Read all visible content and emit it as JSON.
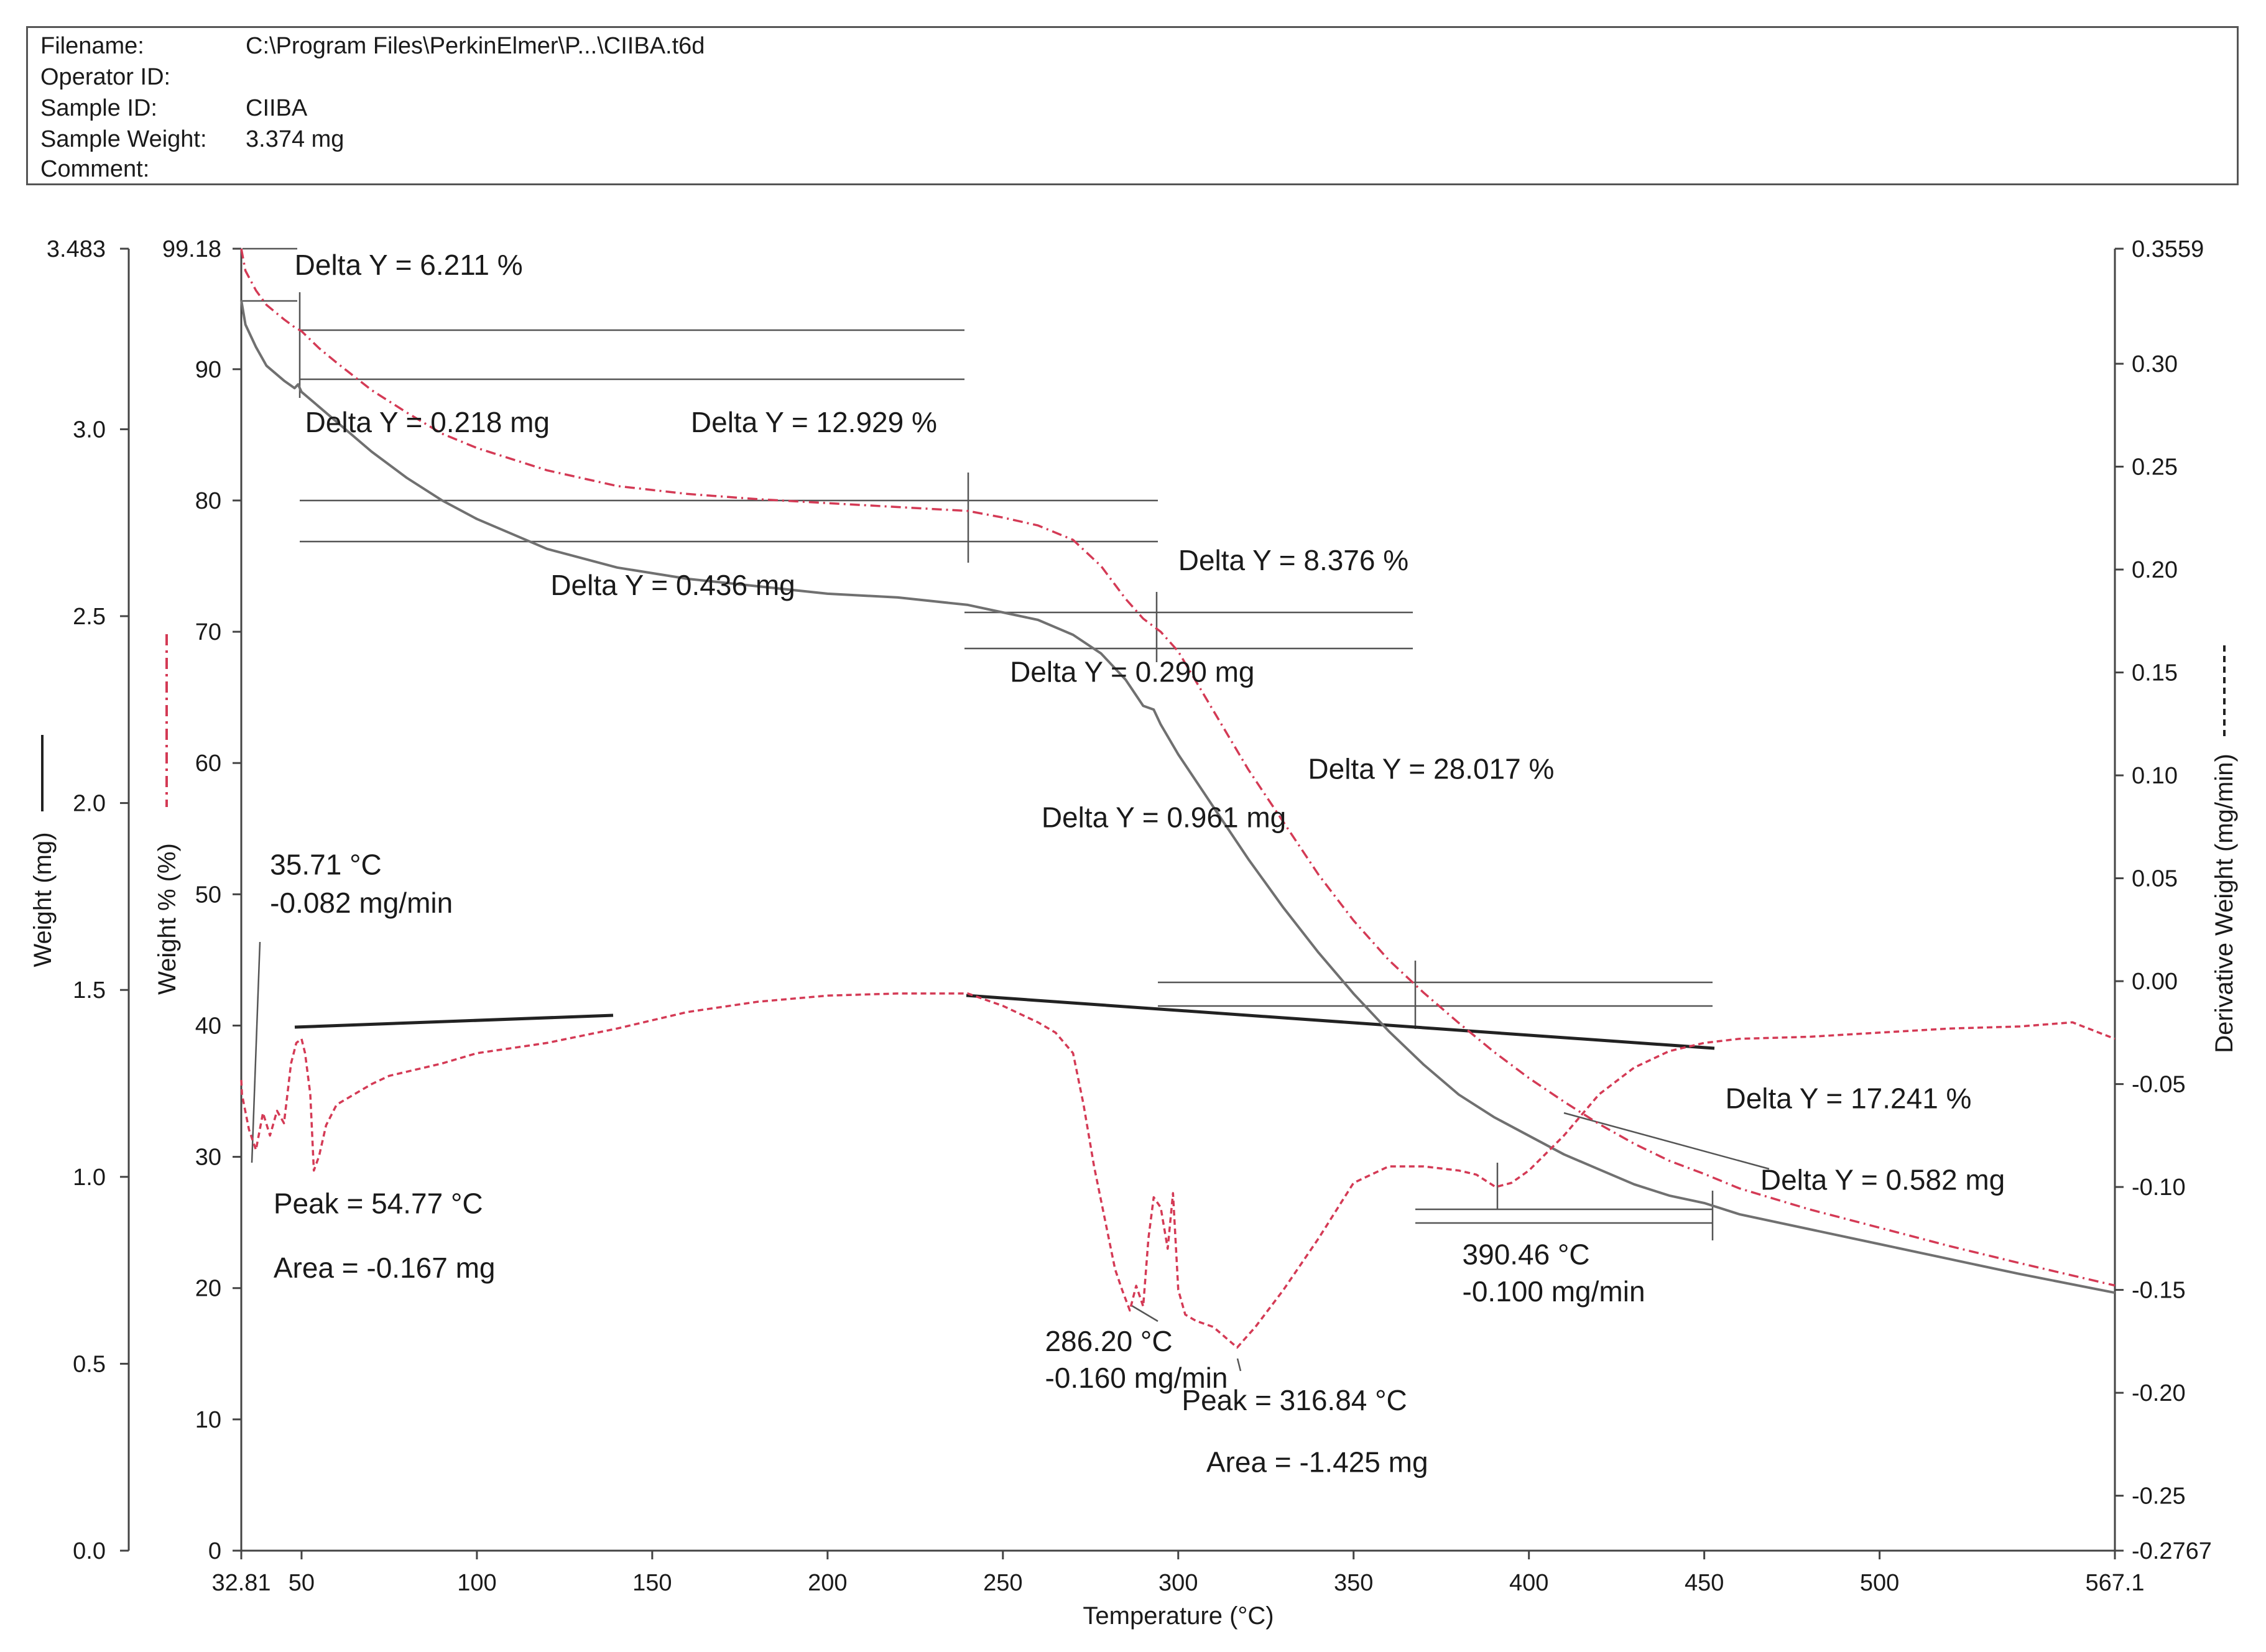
{
  "header": {
    "rows": [
      {
        "label": "Filename:",
        "value": "C:\\Program Files\\PerkinElmer\\P...\\CIIBA.t6d"
      },
      {
        "label": "Operator ID:",
        "value": ""
      },
      {
        "label": "Sample ID:",
        "value": "CIIBA"
      },
      {
        "label": "Sample Weight:",
        "value": "3.374 mg"
      },
      {
        "label": "Comment:",
        "value": ""
      }
    ]
  },
  "chart_data": {
    "type": "line",
    "xlabel": "Temperature (°C)",
    "ylabel_left_outer": "Weight (mg)",
    "ylabel_left_inner": "Weight % (%)",
    "ylabel_right": "Derivative Weight (mg/min)",
    "xlim": [
      32.81,
      567.1
    ],
    "ylim_weight_mg": [
      0.0,
      3.483
    ],
    "ylim_weight_pct": [
      0,
      99.18
    ],
    "ylim_deriv": [
      -0.2767,
      0.3559
    ],
    "x_ticks": [
      "32.81",
      "50",
      "100",
      "150",
      "200",
      "250",
      "300",
      "350",
      "400",
      "450",
      "500",
      "567.1"
    ],
    "x_tick_values": [
      32.81,
      50,
      100,
      150,
      200,
      250,
      300,
      350,
      400,
      450,
      500,
      567.1
    ],
    "mg_ticks": [
      "0.0",
      "0.5",
      "1.0",
      "1.5",
      "2.0",
      "2.5",
      "3.0",
      "3.483"
    ],
    "mg_tick_values": [
      0.0,
      0.5,
      1.0,
      1.5,
      2.0,
      2.5,
      3.0,
      3.483
    ],
    "pct_ticks": [
      "0",
      "10",
      "20",
      "30",
      "40",
      "50",
      "60",
      "70",
      "80",
      "90",
      "99.18"
    ],
    "pct_tick_values": [
      0,
      10,
      20,
      30,
      40,
      50,
      60,
      70,
      80,
      90,
      99.18
    ],
    "deriv_ticks": [
      "-0.2767",
      "-0.25",
      "-0.20",
      "-0.15",
      "-0.10",
      "-0.05",
      "0.00",
      "0.05",
      "0.10",
      "0.15",
      "0.20",
      "0.25",
      "0.30",
      "0.3559"
    ],
    "deriv_tick_values": [
      -0.2767,
      -0.25,
      -0.2,
      -0.15,
      -0.1,
      -0.05,
      0.0,
      0.05,
      0.1,
      0.15,
      0.2,
      0.25,
      0.3,
      0.3559
    ],
    "series": [
      {
        "axis": "mg",
        "style": "solid",
        "color": "#707070",
        "x": [
          32.81,
          34,
          37,
          40,
          45,
          48,
          49,
          50,
          55,
          60,
          70,
          80,
          90,
          100,
          120,
          140,
          160,
          180,
          200,
          220,
          240,
          250,
          260,
          270,
          278,
          285,
          290,
          293,
          295,
          300,
          310,
          320,
          330,
          340,
          350,
          360,
          370,
          380,
          390,
          400,
          410,
          420,
          430,
          440,
          450,
          460,
          480,
          500,
          520,
          540,
          567.1
        ],
        "y": [
          3.345,
          3.28,
          3.22,
          3.17,
          3.13,
          3.11,
          3.12,
          3.1,
          3.06,
          3.02,
          2.94,
          2.87,
          2.81,
          2.76,
          2.68,
          2.63,
          2.6,
          2.58,
          2.56,
          2.55,
          2.53,
          2.51,
          2.49,
          2.45,
          2.4,
          2.33,
          2.26,
          2.25,
          2.21,
          2.13,
          1.99,
          1.85,
          1.72,
          1.6,
          1.49,
          1.39,
          1.3,
          1.22,
          1.16,
          1.11,
          1.06,
          1.02,
          0.98,
          0.95,
          0.93,
          0.9,
          0.86,
          0.82,
          0.78,
          0.74,
          0.69
        ]
      },
      {
        "axis": "pct",
        "style": "dashdot",
        "color": "#d43a55",
        "x": [
          32.81,
          34,
          37,
          40,
          45,
          48,
          50,
          55,
          60,
          70,
          80,
          90,
          100,
          120,
          140,
          160,
          180,
          200,
          220,
          240,
          250,
          260,
          270,
          278,
          285,
          290,
          295,
          300,
          310,
          320,
          330,
          340,
          350,
          360,
          370,
          380,
          390,
          400,
          410,
          420,
          430,
          440,
          450,
          460,
          480,
          500,
          520,
          540,
          567.1
        ],
        "y": [
          99.18,
          97.5,
          96.0,
          94.9,
          93.8,
          93.2,
          92.9,
          91.6,
          90.5,
          88.4,
          86.7,
          85.1,
          84.0,
          82.3,
          81.1,
          80.5,
          80.1,
          79.8,
          79.5,
          79.2,
          78.7,
          78.1,
          77.0,
          75.0,
          72.5,
          71.0,
          70.0,
          68.5,
          64.0,
          59.5,
          55.5,
          51.5,
          48.0,
          45.0,
          42.5,
          40.2,
          38.0,
          36.0,
          34.2,
          32.5,
          31.0,
          29.7,
          28.7,
          27.6,
          26.0,
          24.6,
          23.2,
          21.9,
          20.2
        ]
      },
      {
        "axis": "deriv",
        "style": "dashed",
        "color": "#d43a55",
        "x": [
          32.81,
          33,
          35,
          37,
          39,
          41,
          43,
          45,
          47,
          48.5,
          50,
          51,
          52.5,
          53.5,
          55,
          57,
          60,
          65,
          70,
          75,
          80,
          90,
          100,
          120,
          140,
          160,
          180,
          200,
          220,
          240,
          250,
          260,
          265,
          270,
          273,
          276,
          279,
          282,
          284,
          286.2,
          288,
          290,
          291.5,
          293,
          295,
          297,
          298.5,
          300,
          302,
          305,
          310,
          316.8,
          322,
          330,
          340,
          350,
          360,
          370,
          380,
          385,
          390.5,
          395,
          400,
          410,
          420,
          430,
          440,
          450,
          460,
          480,
          500,
          520,
          540,
          555,
          567.1
        ],
        "y": [
          -0.048,
          -0.055,
          -0.072,
          -0.082,
          -0.064,
          -0.075,
          -0.063,
          -0.069,
          -0.04,
          -0.03,
          -0.028,
          -0.035,
          -0.055,
          -0.092,
          -0.085,
          -0.07,
          -0.06,
          -0.055,
          -0.05,
          -0.046,
          -0.044,
          -0.04,
          -0.035,
          -0.03,
          -0.023,
          -0.015,
          -0.01,
          -0.007,
          -0.006,
          -0.006,
          -0.012,
          -0.02,
          -0.025,
          -0.035,
          -0.06,
          -0.09,
          -0.115,
          -0.14,
          -0.15,
          -0.16,
          -0.148,
          -0.158,
          -0.125,
          -0.105,
          -0.11,
          -0.13,
          -0.103,
          -0.15,
          -0.162,
          -0.165,
          -0.168,
          -0.178,
          -0.168,
          -0.15,
          -0.125,
          -0.098,
          -0.09,
          -0.09,
          -0.092,
          -0.094,
          -0.1,
          -0.098,
          -0.092,
          -0.075,
          -0.055,
          -0.042,
          -0.034,
          -0.03,
          -0.028,
          -0.027,
          -0.025,
          -0.023,
          -0.022,
          -0.02,
          -0.028
        ]
      }
    ],
    "annotations": [
      {
        "text": "Delta Y = 6.211 %",
        "x": 48,
        "y_pct": 97.2
      },
      {
        "text": "Delta Y = 0.218 mg",
        "x": 51,
        "y_pct": 85.2
      },
      {
        "text": "Delta Y = 12.929 %",
        "x": 161,
        "y_pct": 85.2
      },
      {
        "text": "Delta Y = 0.436 mg",
        "x": 121,
        "y_pct": 72.8
      },
      {
        "text": "Delta Y = 8.376 %",
        "x": 300,
        "y_pct": 74.7
      },
      {
        "text": "Delta Y = 0.290 mg",
        "x": 252,
        "y_pct": 66.2
      },
      {
        "text": "Delta Y = 28.017 %",
        "x": 337,
        "y_pct": 58.8
      },
      {
        "text": "Delta Y = 0.961 mg",
        "x": 261,
        "y_pct": 55.1
      },
      {
        "text": "Delta Y = 17.241 %",
        "x": 456,
        "y_pct": 33.7
      },
      {
        "text": "Delta Y = 0.582 mg",
        "x": 466,
        "y_pct": 27.5
      },
      {
        "text": "35.71 °C",
        "x": 41,
        "y_pct": 51.5
      },
      {
        "text": "-0.082 mg/min",
        "x": 41,
        "y_pct": 48.6
      },
      {
        "text": "Peak = 54.77 °C",
        "x": 42,
        "y_pct": 25.7
      },
      {
        "text": "Area = -0.167 mg",
        "x": 42,
        "y_pct": 20.8
      },
      {
        "text": "286.20 °C",
        "x": 262,
        "y_pct": 15.2
      },
      {
        "text": "-0.160 mg/min",
        "x": 262,
        "y_pct": 12.4
      },
      {
        "text": "Peak = 316.84 °C",
        "x": 301,
        "y_pct": 10.7
      },
      {
        "text": "Area = -1.425 mg",
        "x": 308,
        "y_pct": 6.0
      },
      {
        "text": "390.46 °C",
        "x": 381,
        "y_pct": 21.8
      },
      {
        "text": "-0.100 mg/min",
        "x": 381,
        "y_pct": 19.0
      }
    ]
  }
}
